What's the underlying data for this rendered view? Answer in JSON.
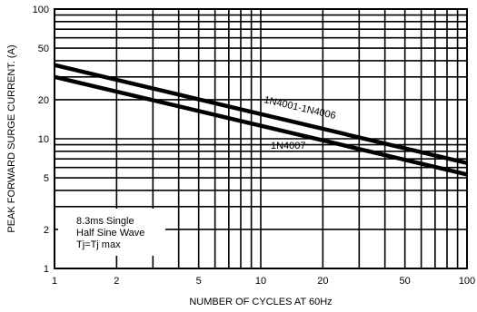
{
  "chart_data": {
    "type": "line",
    "xscale": "log",
    "yscale": "log",
    "xlim": [
      1,
      100
    ],
    "ylim": [
      1,
      100
    ],
    "xlabel": "NUMBER OF CYCLES AT 60Hz",
    "ylabel": "PEAK FORWARD SURGE CURRENT. (A)",
    "x_ticks": [
      "1",
      "2",
      "5",
      "10",
      "20",
      "50",
      "100"
    ],
    "y_ticks": [
      "1",
      "2",
      "5",
      "10",
      "20",
      "50",
      "100"
    ],
    "grid": true,
    "series": [
      {
        "name": "1N4001-1N4006",
        "x": [
          1,
          100
        ],
        "y": [
          37,
          6.5
        ]
      },
      {
        "name": "1N4007",
        "x": [
          1,
          100
        ],
        "y": [
          30,
          5.3
        ]
      }
    ],
    "annotation": [
      "8.3ms Single",
      "Half Sine Wave",
      "Tj=Tj max"
    ],
    "colors": {
      "line": "#000000",
      "background": "#ffffff"
    }
  }
}
